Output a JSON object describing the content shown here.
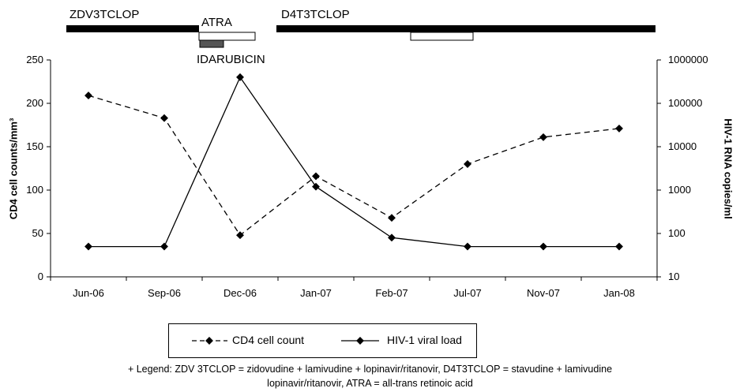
{
  "treatments": {
    "zdv": "ZDV3TCLOP",
    "atra": "ATRA",
    "idarubicin": "IDARUBICIN",
    "d4t": "D4T3TCLOP"
  },
  "legend": {
    "cd4": "CD4 cell count",
    "hiv": "HIV-1 viral load"
  },
  "footnote": {
    "line1": "+ Legend: ZDV 3TCLOP = zidovudine + lamivudine + lopinavir/ritanovir, D4T3TCLOP = stavudine + lamivudine",
    "line2": "lopinavir/ritanovir, ATRA = all-trans retinoic acid"
  },
  "chart_data": {
    "type": "line",
    "categories": [
      "Jun-06",
      "Sep-06",
      "Dec-06",
      "Jan-07",
      "Feb-07",
      "Jul-07",
      "Nov-07",
      "Jan-08"
    ],
    "ylabel": "CD4 cell counts/mm³",
    "y2label": "HIV-1 RNA copies/ml",
    "ylim": [
      0,
      250
    ],
    "yticks": [
      "0",
      "50",
      "100",
      "150",
      "200",
      "250"
    ],
    "y2lim": [
      10,
      1000000
    ],
    "y2scale": "log",
    "y2ticks": [
      "10",
      "100",
      "1000",
      "10000",
      "100000",
      "1000000"
    ],
    "series": [
      {
        "name": "CD4 cell count",
        "axis": "left",
        "style": "dashed",
        "values": [
          209,
          183,
          48,
          116,
          68,
          130,
          161,
          171
        ]
      },
      {
        "name": "HIV-1 viral load",
        "axis": "right",
        "style": "solid",
        "values": [
          50,
          50,
          400000,
          1200,
          80,
          50,
          50,
          50
        ]
      }
    ],
    "grid": false,
    "legend_position": "bottom"
  }
}
